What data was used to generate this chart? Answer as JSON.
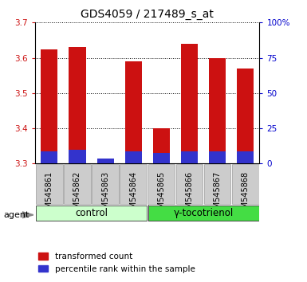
{
  "title": "GDS4059 / 217489_s_at",
  "samples": [
    "GSM545861",
    "GSM545862",
    "GSM545863",
    "GSM545864",
    "GSM545865",
    "GSM545866",
    "GSM545867",
    "GSM545868"
  ],
  "red_values": [
    3.625,
    3.63,
    3.31,
    3.59,
    3.4,
    3.64,
    3.6,
    3.57
  ],
  "blue_values": [
    3.335,
    3.34,
    3.315,
    3.335,
    3.33,
    3.335,
    3.335,
    3.335
  ],
  "ymin": 3.3,
  "ymax": 3.7,
  "yticks": [
    3.3,
    3.4,
    3.5,
    3.6,
    3.7
  ],
  "right_yticks_pct": [
    0,
    25,
    50,
    75,
    100
  ],
  "right_ylabels": [
    "0",
    "25",
    "50",
    "75",
    "100%"
  ],
  "bar_color_red": "#cc1111",
  "bar_color_blue": "#3333cc",
  "bar_width": 0.6,
  "groups": [
    {
      "label": "control",
      "samples": [
        0,
        1,
        2,
        3
      ],
      "color": "#ccffcc"
    },
    {
      "label": "γ-tocotrienol",
      "samples": [
        4,
        5,
        6,
        7
      ],
      "color": "#44dd44"
    }
  ],
  "agent_label": "agent",
  "ytick_color": "#cc1111",
  "right_ytick_color": "#0000cc",
  "tick_bg_color": "#cccccc",
  "plot_bg_color": "#ffffff",
  "title_fontsize": 10,
  "tick_fontsize": 7.5,
  "xtick_fontsize": 7,
  "group_fontsize": 8.5,
  "legend_fontsize": 7.5
}
